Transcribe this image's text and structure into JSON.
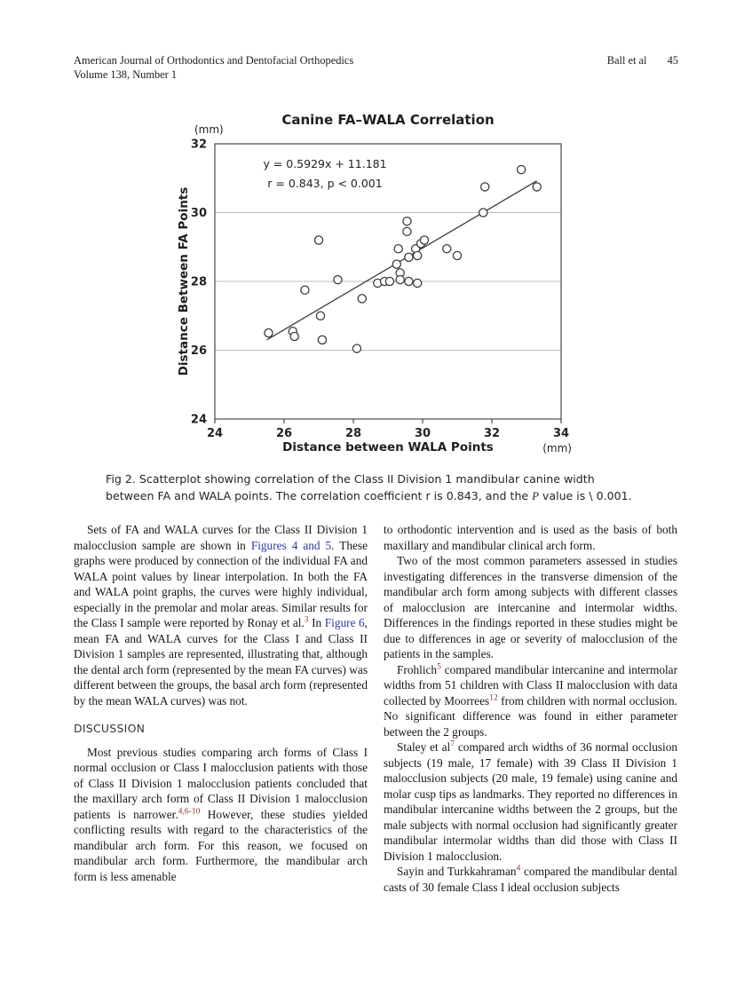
{
  "colors": {
    "link_blue": "#2b3a9c",
    "citation_red": "#8a382c",
    "gridline_gray": "#bdbdbd",
    "plot_stroke": "#3c3c3c"
  },
  "header": {
    "journal": "American Journal of Orthodontics and Dentofacial Orthopedics",
    "issue": "Volume 138, Number 1",
    "author": "Ball et al",
    "page_number": "45"
  },
  "chart_data": {
    "type": "scatter",
    "title": "Canine FA–WALA Correlation",
    "xlabel": "Distance between WALA Points",
    "ylabel": "Distance Between FA Points",
    "y_unit": "(mm)",
    "x_unit": "(mm)",
    "xlim": [
      24,
      34
    ],
    "ylim": [
      24,
      32
    ],
    "x_ticks": [
      24,
      26,
      28,
      30,
      32,
      34
    ],
    "y_ticks": [
      24,
      26,
      28,
      30,
      32
    ],
    "gridlines_y": [
      26,
      28,
      30
    ],
    "annotation_line1": "y = 0.5929x + 11.181",
    "annotation_line2": "r = 0.843, p < 0.001",
    "points": [
      [
        25.55,
        26.5
      ],
      [
        26.25,
        26.55
      ],
      [
        26.3,
        26.4
      ],
      [
        26.6,
        27.75
      ],
      [
        27.0,
        29.2
      ],
      [
        27.05,
        27.0
      ],
      [
        27.1,
        26.3
      ],
      [
        27.55,
        28.05
      ],
      [
        28.1,
        26.05
      ],
      [
        28.25,
        27.5
      ],
      [
        28.7,
        27.95
      ],
      [
        28.9,
        28.0
      ],
      [
        29.05,
        28.0
      ],
      [
        29.25,
        28.5
      ],
      [
        29.3,
        28.95
      ],
      [
        29.35,
        28.25
      ],
      [
        29.35,
        28.05
      ],
      [
        29.55,
        29.45
      ],
      [
        29.55,
        29.75
      ],
      [
        29.6,
        28.7
      ],
      [
        29.6,
        28.0
      ],
      [
        29.8,
        28.95
      ],
      [
        29.85,
        28.75
      ],
      [
        29.85,
        27.95
      ],
      [
        29.95,
        29.1
      ],
      [
        30.05,
        29.2
      ],
      [
        30.7,
        28.95
      ],
      [
        31.0,
        28.75
      ],
      [
        31.75,
        30.0
      ],
      [
        31.8,
        30.75
      ],
      [
        32.85,
        31.25
      ],
      [
        33.3,
        30.75
      ]
    ],
    "trendline": {
      "slope": 0.5929,
      "intercept": 11.181,
      "x_start": 25.5,
      "x_end": 33.3
    },
    "legend": "none",
    "grid": "horizontal-only"
  },
  "figure_caption": [
    {
      "t": "Fig 2.  Scatterplot showing correlation of the Class II Division 1 mandibular canine width between FA and WALA points. The correlation coefficient r is 0.843, and the "
    },
    {
      "t": "P",
      "s": "italic"
    },
    {
      "t": " value is \\ 0.001."
    }
  ],
  "body": {
    "left_column": {
      "blocks": [
        {
          "type": "para",
          "indent": true,
          "segments": [
            {
              "t": "Sets of FA and WALA curves for the Class II Division 1 malocclusion sample are shown in "
            },
            {
              "t": "Figures 4 and 5",
              "s": "link"
            },
            {
              "t": ". These graphs were produced by connection of the individual FA and WALA point values by linear interpolation. In both the FA and WALA point graphs, the curves were highly individual, especially in the premolar and molar areas. Similar results for the Class I sample were reported by Ronay et al."
            },
            {
              "t": "3",
              "s": "sup"
            },
            {
              "t": " In "
            },
            {
              "t": "Figure 6",
              "s": "link"
            },
            {
              "t": ", mean FA and WALA curves for the Class I and Class II Division 1 samples are represented, illustrating that, although the dental arch form (represented by the mean FA curves) was different between the groups, the basal arch form (represented by the mean WALA curves) was not."
            }
          ]
        },
        {
          "type": "heading",
          "text": "DISCUSSION"
        },
        {
          "type": "para",
          "indent": true,
          "segments": [
            {
              "t": "Most previous studies comparing arch forms of Class I normal occlusion or Class I malocclusion patients with those of Class II Division 1 malocclusion patients concluded that the maxillary arch form of Class II Division 1 malocclusion patients is narrower."
            },
            {
              "t": "4,6-10",
              "s": "sup"
            },
            {
              "t": " However, these studies yielded conflicting results with regard to the characteristics of the mandibular arch form. For this reason, we focused on mandibular arch form. Furthermore, the mandibular arch form is less amenable"
            }
          ]
        }
      ]
    },
    "right_column": {
      "blocks": [
        {
          "type": "para",
          "indent": false,
          "segments": [
            {
              "t": "to orthodontic intervention and is used as the basis of both maxillary and mandibular clinical arch form."
            }
          ]
        },
        {
          "type": "para",
          "indent": true,
          "segments": [
            {
              "t": "Two of the most common parameters assessed in studies investigating differences in the transverse dimension of the mandibular arch form among subjects with different classes of malocclusion are intercanine and intermolar widths. Differences in the findings reported in these studies might be due to differences in age or severity of malocclusion of the patients in the samples."
            }
          ]
        },
        {
          "type": "para",
          "indent": true,
          "segments": [
            {
              "t": "Frohlich"
            },
            {
              "t": "5",
              "s": "sup"
            },
            {
              "t": " compared mandibular intercanine and intermolar widths from 51 children with Class II malocclusion with data collected by Moorrees"
            },
            {
              "t": "12",
              "s": "sup"
            },
            {
              "t": " from children with normal occlusion. No significant difference was found in either parameter between the 2 groups."
            }
          ]
        },
        {
          "type": "para",
          "indent": true,
          "segments": [
            {
              "t": "Staley et al"
            },
            {
              "t": "7",
              "s": "sup"
            },
            {
              "t": " compared arch widths of 36 normal occlusion subjects (19 male, 17 female) with 39 Class II Division 1 malocclusion subjects (20 male, 19 female) using canine and molar cusp tips as landmarks. They reported no differences in mandibular intercanine widths between the 2 groups, but the male subjects with normal occlusion had significantly greater mandibular intermolar widths than did those with Class II Division 1 malocclusion."
            }
          ]
        },
        {
          "type": "para",
          "indent": true,
          "segments": [
            {
              "t": "Sayin and Turkkahraman"
            },
            {
              "t": "4",
              "s": "sup"
            },
            {
              "t": " compared the mandibular dental casts of 30 female Class I ideal occlusion subjects"
            }
          ]
        }
      ]
    }
  }
}
